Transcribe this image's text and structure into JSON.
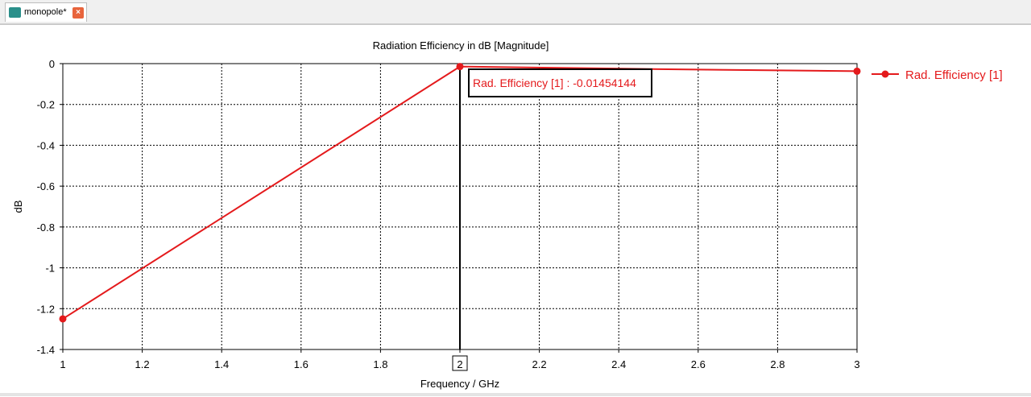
{
  "tab": {
    "label": "monopole*",
    "close_glyph": "×",
    "icon": "cst-project-icon"
  },
  "colors": {
    "series": "#e41a1c",
    "grid": "#000000",
    "axis": "#000000",
    "text": "#000000"
  },
  "chart_data": {
    "type": "line",
    "title": "Radiation Efficiency in dB [Magnitude]",
    "xlabel": "Frequency / GHz",
    "ylabel": "dB",
    "xlim": [
      1,
      3
    ],
    "ylim": [
      -1.4,
      0
    ],
    "x_ticks": [
      1,
      1.2,
      1.4,
      1.6,
      1.8,
      2,
      2.2,
      2.4,
      2.6,
      2.8,
      3
    ],
    "y_ticks": [
      0,
      -0.2,
      -0.4,
      -0.6,
      -0.8,
      -1,
      -1.2,
      -1.4
    ],
    "grid": true,
    "legend_position": "right",
    "series": [
      {
        "name": "Rad. Efficiency [1]",
        "color": "#e41a1c",
        "x": [
          1,
          2,
          2.5,
          3
        ],
        "y": [
          -1.25,
          -0.01454144,
          -0.027,
          -0.037
        ],
        "markers_at": [
          1,
          2,
          3
        ]
      }
    ],
    "marker": {
      "x": 2,
      "x_label": "2",
      "annotation": "Rad. Efficiency [1] : -0.01454144"
    }
  }
}
